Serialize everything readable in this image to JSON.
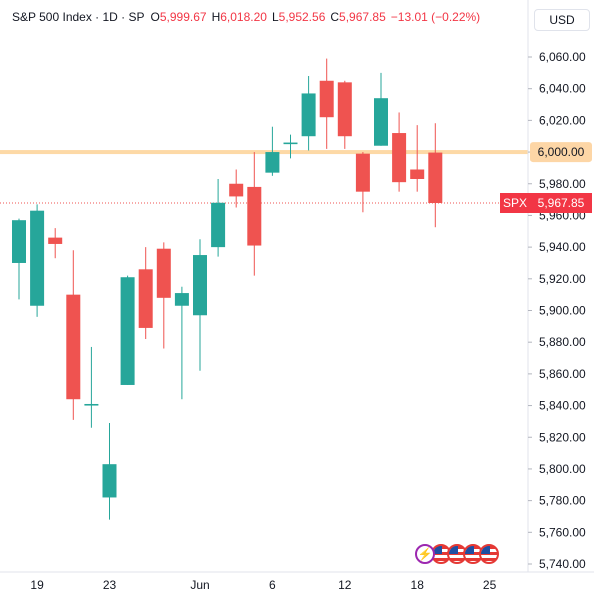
{
  "header": {
    "symbol": "S&P 500 Index · 1D · SP",
    "open_label": "O",
    "open_value": "5,999.67",
    "high_label": "H",
    "high_value": "6,018.20",
    "low_label": "L",
    "low_value": "5,952.56",
    "close_label": "C",
    "close_value": "5,967.85",
    "change": "−13.01 (−0.22%)"
  },
  "currency": "USD",
  "price_badge": {
    "ticker": "SPX",
    "value": "5,967.85"
  },
  "highlight_label": "6,000.00",
  "events": {
    "icon": "lightning-icon",
    "flags": 4
  },
  "colors": {
    "up": "#26a69a",
    "down": "#ef5350",
    "level_line": "#fdd9a6",
    "highlight": "#fdd6a6",
    "price_badge": "#f23645"
  },
  "chart_data": {
    "type": "candlestick",
    "title": "S&P 500 Index",
    "interval": "1D",
    "ylim": [
      5740,
      6070
    ],
    "yticks": [
      5740,
      5760,
      5780,
      5800,
      5820,
      5840,
      5860,
      5880,
      5900,
      5920,
      5940,
      5960,
      5980,
      6000,
      6020,
      6040,
      6060
    ],
    "ytick_labels": [
      "5,740.00",
      "5,760.00",
      "5,780.00",
      "5,800.00",
      "5,820.00",
      "5,840.00",
      "5,860.00",
      "5,880.00",
      "5,900.00",
      "5,920.00",
      "5,940.00",
      "5,960.00",
      "5,980.00",
      "6,000.00",
      "6,020.00",
      "6,040.00",
      "6,060.00"
    ],
    "xticks": [
      {
        "label": "19",
        "index": 1
      },
      {
        "label": "23",
        "index": 5
      },
      {
        "label": "Jun",
        "index": 10
      },
      {
        "label": "6",
        "index": 14
      },
      {
        "label": "12",
        "index": 18
      },
      {
        "label": "18",
        "index": 22
      },
      {
        "label": "25",
        "index": 26
      }
    ],
    "horizontal_line": 6000,
    "last_price": 5967.85,
    "candles": [
      {
        "o": 5930,
        "h": 5958,
        "l": 5907,
        "c": 5957
      },
      {
        "o": 5903,
        "h": 5967,
        "l": 5896,
        "c": 5963
      },
      {
        "o": 5946,
        "h": 5952,
        "l": 5933,
        "c": 5942
      },
      {
        "o": 5910,
        "h": 5938,
        "l": 5831,
        "c": 5844
      },
      {
        "o": 5840,
        "h": 5877,
        "l": 5826,
        "c": 5841
      },
      {
        "o": 5782,
        "h": 5829,
        "l": 5768,
        "c": 5803
      },
      {
        "o": 5853,
        "h": 5922,
        "l": 5853,
        "c": 5921
      },
      {
        "o": 5926,
        "h": 5940,
        "l": 5882,
        "c": 5889
      },
      {
        "o": 5939,
        "h": 5943,
        "l": 5876,
        "c": 5908
      },
      {
        "o": 5903,
        "h": 5915,
        "l": 5844,
        "c": 5911
      },
      {
        "o": 5897,
        "h": 5945,
        "l": 5862,
        "c": 5935
      },
      {
        "o": 5940,
        "h": 5983,
        "l": 5934,
        "c": 5968
      },
      {
        "o": 5980,
        "h": 5989,
        "l": 5965,
        "c": 5972
      },
      {
        "o": 5978,
        "h": 6000,
        "l": 5922,
        "c": 5941
      },
      {
        "o": 5987,
        "h": 6016,
        "l": 5985,
        "c": 6000
      },
      {
        "o": 6005,
        "h": 6011,
        "l": 5996,
        "c": 6006
      },
      {
        "o": 6010,
        "h": 6048,
        "l": 6001,
        "c": 6037
      },
      {
        "o": 6045,
        "h": 6059,
        "l": 6002,
        "c": 6022
      },
      {
        "o": 6044,
        "h": 6045,
        "l": 6002,
        "c": 6010
      },
      {
        "o": 5999,
        "h": 6000,
        "l": 5962,
        "c": 5975
      },
      {
        "o": 6004,
        "h": 6050,
        "l": 6004,
        "c": 6034
      },
      {
        "o": 6012,
        "h": 6025,
        "l": 5975,
        "c": 5981
      },
      {
        "o": 5989,
        "h": 6017,
        "l": 5975,
        "c": 5983
      },
      {
        "o": 5999.67,
        "h": 6018.2,
        "l": 5952.56,
        "c": 5967.85
      }
    ]
  }
}
